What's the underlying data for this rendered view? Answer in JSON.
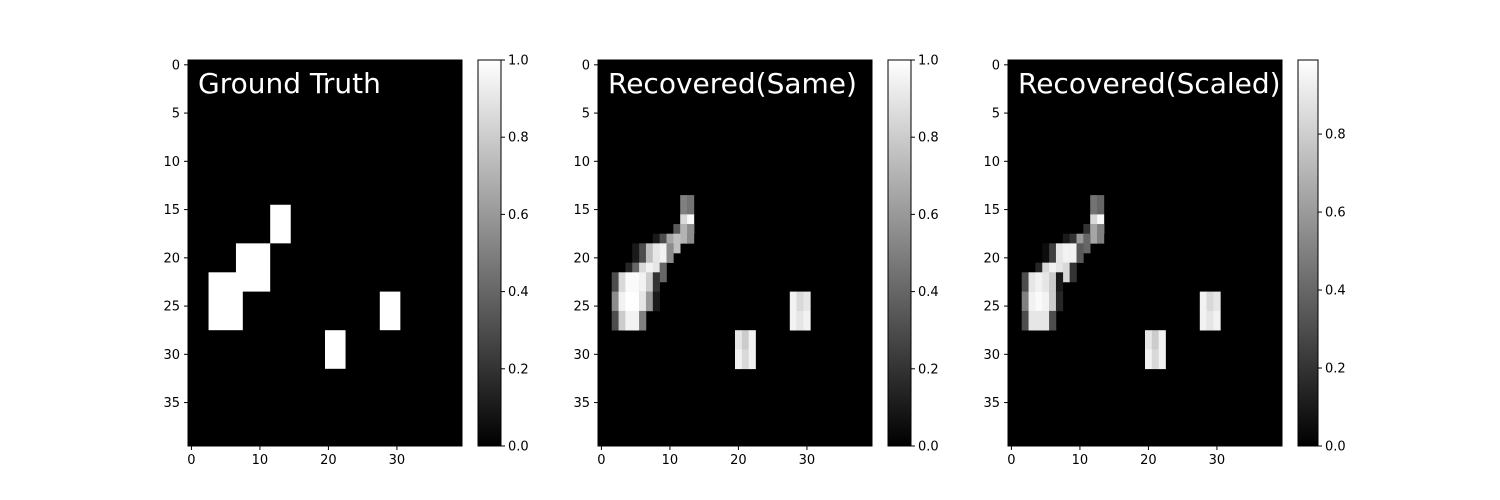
{
  "chart_data": [
    {
      "type": "heatmap",
      "title": "Ground Truth",
      "colormap": "gray",
      "x_ticks": [
        0,
        10,
        20,
        30
      ],
      "y_ticks": [
        0,
        5,
        10,
        15,
        20,
        25,
        30,
        35
      ],
      "xlim": [
        -0.5,
        39.5
      ],
      "ylim": [
        -0.5,
        39.5
      ],
      "colorbar": {
        "range": [
          0,
          1
        ],
        "ticks": [
          "0.0",
          "0.2",
          "0.4",
          "0.6",
          "0.8",
          "1.0"
        ]
      },
      "patches": [
        {
          "x0": 12,
          "x1": 15,
          "y0": 15,
          "y1": 19,
          "value": 1.0
        },
        {
          "x0": 7,
          "x1": 12,
          "y0": 19,
          "y1": 24,
          "value": 1.0
        },
        {
          "x0": 3,
          "x1": 8,
          "y0": 22,
          "y1": 28,
          "value": 1.0
        },
        {
          "x0": 28,
          "x1": 31,
          "y0": 24,
          "y1": 28,
          "value": 1.0
        },
        {
          "x0": 20,
          "x1": 23,
          "y0": 28,
          "y1": 32,
          "value": 1.0
        }
      ]
    },
    {
      "type": "heatmap",
      "title": "Recovered(Same)",
      "colormap": "gray",
      "x_ticks": [
        0,
        10,
        20,
        30
      ],
      "y_ticks": [
        0,
        5,
        10,
        15,
        20,
        25,
        30,
        35
      ],
      "xlim": [
        -0.5,
        39.5
      ],
      "ylim": [
        -0.5,
        39.5
      ],
      "colorbar": {
        "range": [
          0,
          1
        ],
        "ticks": [
          "0.0",
          "0.2",
          "0.4",
          "0.6",
          "0.8",
          "1.0"
        ]
      },
      "cells": [
        [
          12,
          14,
          0.5
        ],
        [
          13,
          14,
          0.45
        ],
        [
          12,
          16,
          0.85
        ],
        [
          13,
          16,
          0.98
        ],
        [
          11,
          17,
          0.35
        ],
        [
          12,
          17,
          0.7
        ],
        [
          13,
          17,
          0.55
        ],
        [
          8,
          18,
          0.1
        ],
        [
          9,
          18,
          0.3
        ],
        [
          10,
          18,
          0.65
        ],
        [
          11,
          18,
          0.75
        ],
        [
          5,
          19,
          0.1
        ],
        [
          6,
          19,
          0.3
        ],
        [
          7,
          19,
          0.75
        ],
        [
          8,
          19,
          0.9
        ],
        [
          9,
          19,
          0.95
        ],
        [
          10,
          19,
          0.55
        ],
        [
          4,
          21,
          0.15
        ],
        [
          5,
          21,
          0.4
        ],
        [
          6,
          21,
          0.85
        ],
        [
          7,
          21,
          0.95
        ],
        [
          8,
          21,
          0.9
        ],
        [
          9,
          21,
          0.4
        ],
        [
          2,
          22,
          0.3
        ],
        [
          3,
          22,
          0.85
        ],
        [
          4,
          22,
          0.98
        ],
        [
          5,
          22,
          0.98
        ],
        [
          6,
          22,
          0.95
        ],
        [
          7,
          22,
          0.8
        ],
        [
          8,
          22,
          0.2
        ],
        [
          2,
          24,
          0.55
        ],
        [
          3,
          24,
          0.95
        ],
        [
          4,
          24,
          1.0
        ],
        [
          5,
          24,
          1.0
        ],
        [
          6,
          24,
          0.9
        ],
        [
          7,
          24,
          0.6
        ],
        [
          8,
          24,
          0.1
        ],
        [
          2,
          26,
          0.3
        ],
        [
          3,
          26,
          0.8
        ],
        [
          4,
          26,
          0.95
        ],
        [
          5,
          26,
          0.95
        ],
        [
          6,
          26,
          0.5
        ],
        [
          28,
          24,
          0.95
        ],
        [
          29,
          24,
          0.85
        ],
        [
          30,
          24,
          0.9
        ],
        [
          28,
          26,
          0.95
        ],
        [
          29,
          26,
          0.9
        ],
        [
          30,
          26,
          0.95
        ],
        [
          20,
          28,
          0.9
        ],
        [
          21,
          28,
          0.8
        ],
        [
          22,
          28,
          0.95
        ],
        [
          20,
          30,
          0.95
        ],
        [
          21,
          30,
          0.85
        ],
        [
          22,
          30,
          0.95
        ]
      ]
    },
    {
      "type": "heatmap",
      "title": "Recovered(Scaled)",
      "colormap": "gray",
      "x_ticks": [
        0,
        10,
        20,
        30
      ],
      "y_ticks": [
        0,
        5,
        10,
        15,
        20,
        25,
        30,
        35
      ],
      "xlim": [
        -0.5,
        39.5
      ],
      "ylim": [
        -0.5,
        39.5
      ],
      "colorbar": {
        "range": [
          0,
          0.99
        ],
        "ticks": [
          "0.0",
          "0.2",
          "0.4",
          "0.6",
          "0.8"
        ]
      },
      "cells": [
        [
          12,
          14,
          0.45
        ],
        [
          13,
          14,
          0.4
        ],
        [
          12,
          16,
          0.85
        ],
        [
          13,
          16,
          0.98
        ],
        [
          11,
          17,
          0.2
        ],
        [
          12,
          17,
          0.65
        ],
        [
          13,
          17,
          0.5
        ],
        [
          8,
          18,
          0.1
        ],
        [
          9,
          18,
          0.2
        ],
        [
          10,
          18,
          0.6
        ],
        [
          11,
          18,
          0.4
        ],
        [
          5,
          19,
          0.05
        ],
        [
          6,
          19,
          0.25
        ],
        [
          7,
          19,
          0.9
        ],
        [
          8,
          19,
          0.95
        ],
        [
          9,
          19,
          0.95
        ],
        [
          10,
          19,
          0.35
        ],
        [
          4,
          21,
          0.15
        ],
        [
          5,
          21,
          0.85
        ],
        [
          6,
          21,
          0.95
        ],
        [
          7,
          21,
          0.9
        ],
        [
          8,
          21,
          0.85
        ],
        [
          9,
          21,
          0.2
        ],
        [
          2,
          22,
          0.3
        ],
        [
          3,
          22,
          0.9
        ],
        [
          4,
          22,
          0.95
        ],
        [
          5,
          22,
          0.9
        ],
        [
          6,
          22,
          0.8
        ],
        [
          7,
          22,
          0.1
        ],
        [
          2,
          24,
          0.5
        ],
        [
          3,
          24,
          0.95
        ],
        [
          4,
          24,
          0.98
        ],
        [
          5,
          24,
          0.95
        ],
        [
          6,
          24,
          0.8
        ],
        [
          7,
          24,
          0.15
        ],
        [
          2,
          26,
          0.3
        ],
        [
          3,
          26,
          0.9
        ],
        [
          4,
          26,
          0.9
        ],
        [
          5,
          26,
          0.9
        ],
        [
          6,
          26,
          0.3
        ],
        [
          28,
          24,
          0.95
        ],
        [
          29,
          24,
          0.85
        ],
        [
          30,
          24,
          0.9
        ],
        [
          28,
          26,
          0.95
        ],
        [
          29,
          26,
          0.9
        ],
        [
          30,
          26,
          0.95
        ],
        [
          20,
          28,
          0.9
        ],
        [
          21,
          28,
          0.8
        ],
        [
          22,
          28,
          0.95
        ],
        [
          20,
          30,
          0.95
        ],
        [
          21,
          30,
          0.85
        ],
        [
          22,
          30,
          0.95
        ]
      ]
    }
  ]
}
